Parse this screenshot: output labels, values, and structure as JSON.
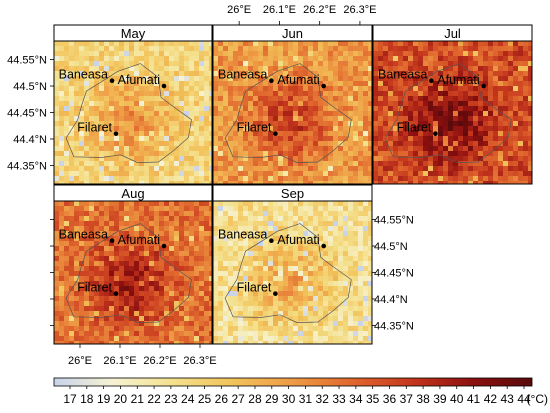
{
  "chart_data": {
    "type": "heatmap",
    "unit": "(°C)",
    "panels": [
      {
        "name": "May",
        "intensity": 0.3,
        "hot_intensity": 0.55
      },
      {
        "name": "Jun",
        "intensity": 0.5,
        "hot_intensity": 0.78
      },
      {
        "name": "Jul",
        "intensity": 0.7,
        "hot_intensity": 0.95
      },
      {
        "name": "Aug",
        "intensity": 0.6,
        "hot_intensity": 0.88
      },
      {
        "name": "Sep",
        "intensity": 0.25,
        "hot_intensity": 0.5
      }
    ],
    "stations": [
      {
        "name": "Baneasa",
        "lon": 26.08,
        "lat": 44.51
      },
      {
        "name": "Afumati",
        "lon": 26.21,
        "lat": 44.5
      },
      {
        "name": "Filaret",
        "lon": 26.09,
        "lat": 44.41
      }
    ],
    "x_ticks": [
      "26°E",
      "26.1°E",
      "26.2°E",
      "26.3°E"
    ],
    "x_tick_values": [
      26.0,
      26.1,
      26.2,
      26.3
    ],
    "y_ticks": [
      "44.55°N",
      "44.5°N",
      "44.45°N",
      "44.4°N",
      "44.35°N"
    ],
    "y_tick_values": [
      44.55,
      44.5,
      44.45,
      44.4,
      44.35
    ],
    "lon_range": [
      25.935,
      26.33
    ],
    "lat_range": [
      44.315,
      44.585
    ],
    "colorbar": {
      "min": 17,
      "max": 44,
      "tick_labels": [
        "17",
        "18",
        "19",
        "20",
        "21",
        "22",
        "23",
        "24",
        "25",
        "26",
        "27",
        "28",
        "29",
        "30",
        "31",
        "32",
        "33",
        "34",
        "35",
        "36",
        "37",
        "38",
        "39",
        "40",
        "41",
        "42",
        "43",
        "44"
      ],
      "colors": [
        "#c9d3ea",
        "#f7f3d2",
        "#f4e08c",
        "#f2c25a",
        "#ee9b45",
        "#e0672e",
        "#c4361d",
        "#8d1010",
        "#5a0a0a"
      ]
    }
  }
}
